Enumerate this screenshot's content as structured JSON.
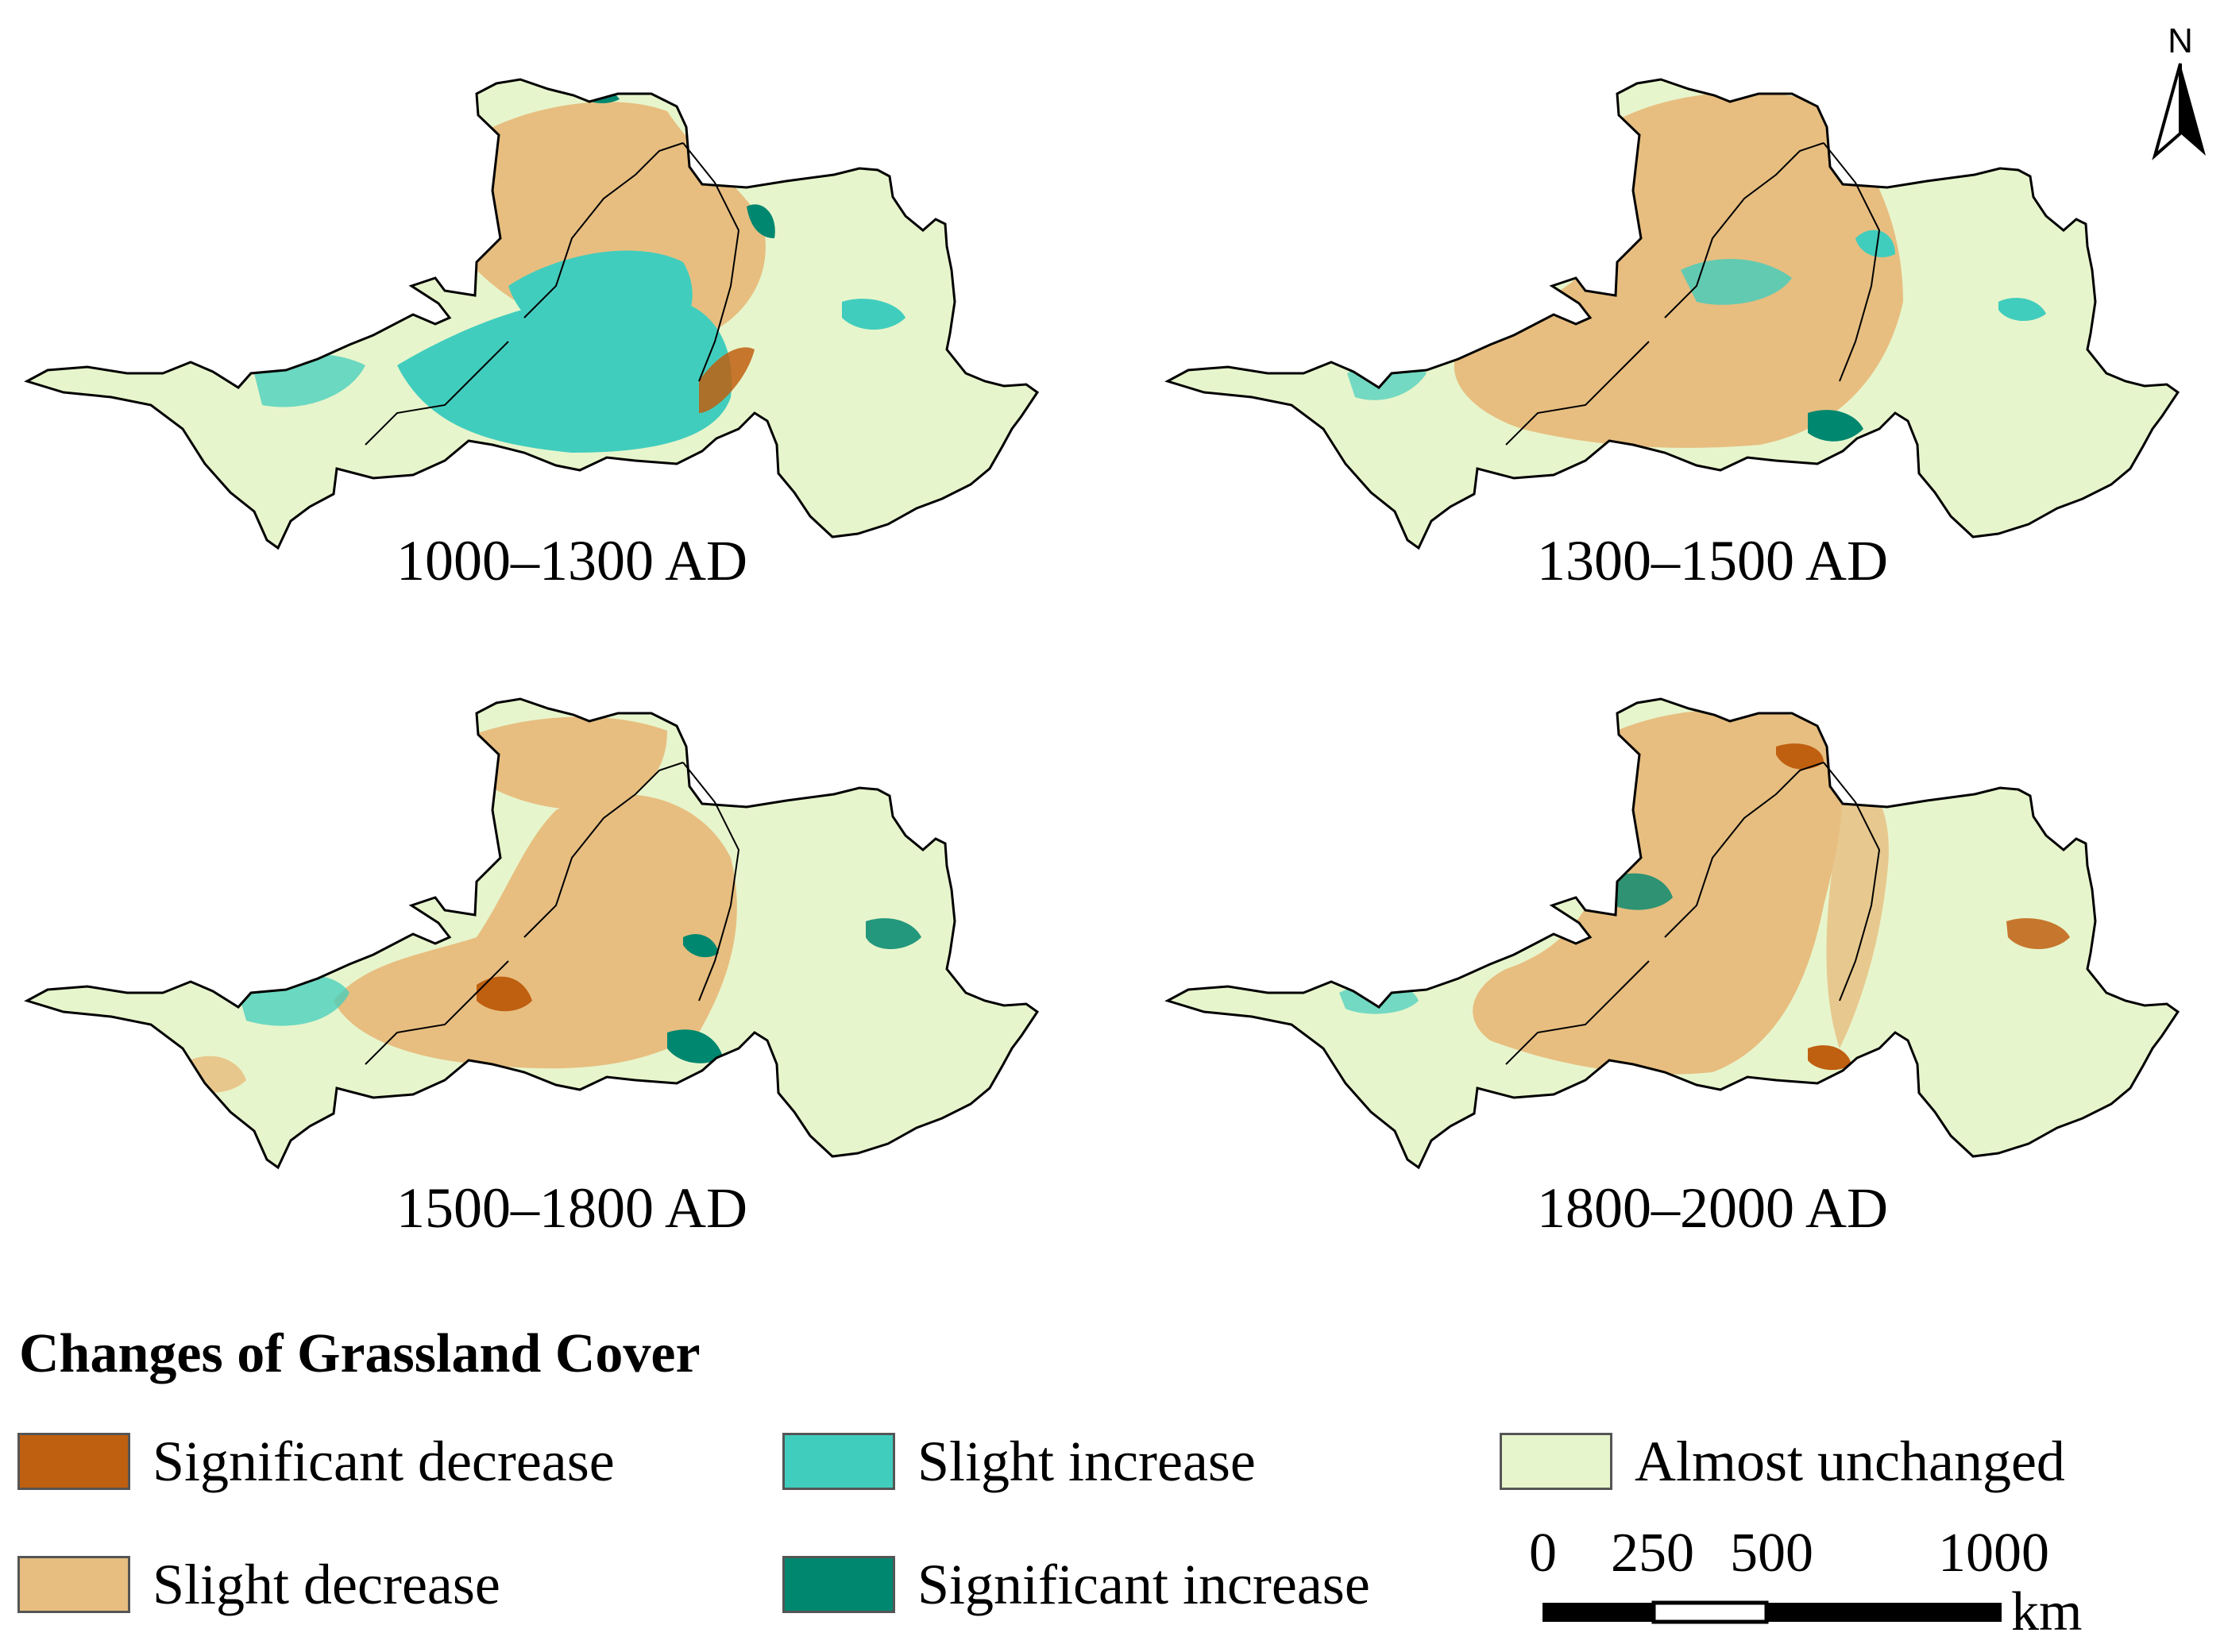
{
  "colors": {
    "significant_decrease": "#bf5f10",
    "slight_decrease": "#e7be80",
    "slight_increase": "#41cdbd",
    "significant_increase": "#00876f",
    "almost_unchanged": "#e7f5cc"
  },
  "panels": [
    {
      "label": "1000–1300 AD",
      "dominant": "slight_increase"
    },
    {
      "label": "1300–1500 AD",
      "dominant": "slight_decrease"
    },
    {
      "label": "1500–1800 AD",
      "dominant": "slight_decrease"
    },
    {
      "label": "1800–2000 AD",
      "dominant": "slight_decrease"
    }
  ],
  "legend": {
    "title": "Changes of Grassland Cover",
    "items": [
      {
        "label": "Significant decrease",
        "color_key": "significant_decrease"
      },
      {
        "label": "Slight increase",
        "color_key": "slight_increase"
      },
      {
        "label": "Almost unchanged",
        "color_key": "almost_unchanged"
      },
      {
        "label": "Slight decrease",
        "color_key": "slight_decrease"
      },
      {
        "label": "Significant increase",
        "color_key": "significant_increase"
      }
    ]
  },
  "scale_bar": {
    "ticks": [
      "0",
      "250",
      "500",
      "1000"
    ],
    "unit": "km"
  },
  "north_arrow": {
    "label": "N",
    "icon": "north-arrow-icon"
  }
}
